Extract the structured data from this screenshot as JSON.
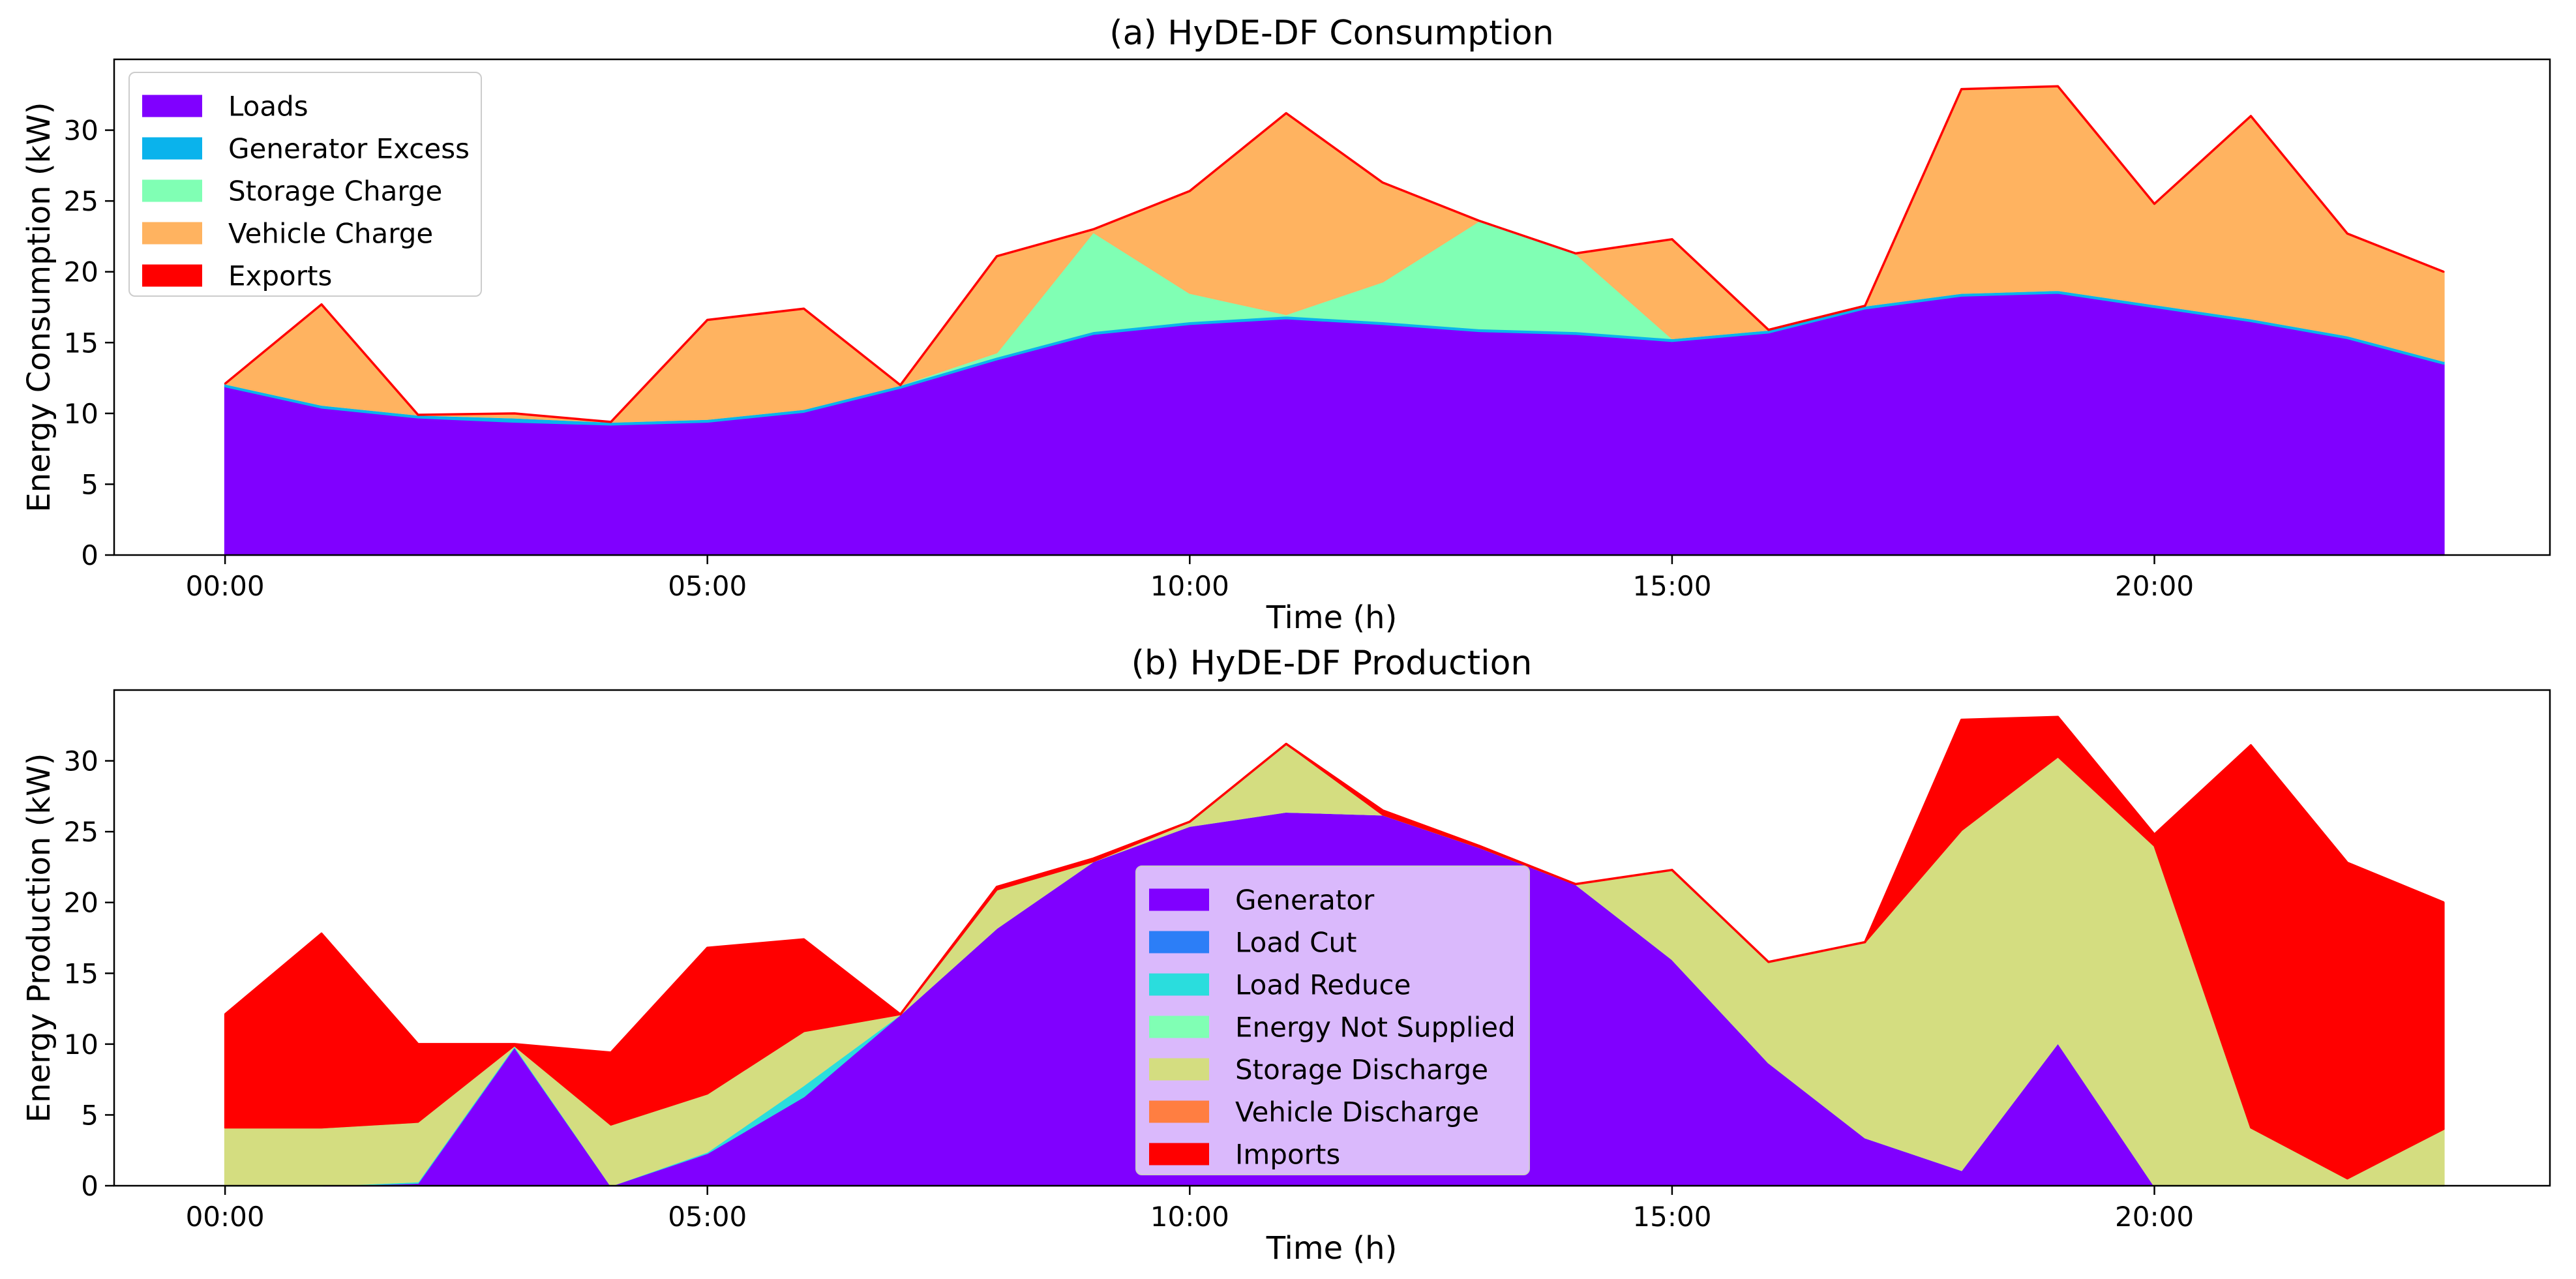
{
  "chart_data": [
    {
      "type": "area",
      "stacked": true,
      "title": "(a) HyDE-DF Consumption",
      "xlabel": "Time (h)",
      "ylabel": "Energy Consumption (kW)",
      "xlim": [
        -1.15,
        24.1
      ],
      "ylim": [
        0,
        35
      ],
      "x": [
        0,
        1,
        2,
        3,
        4,
        5,
        6,
        7,
        8,
        9,
        10,
        11,
        12,
        13,
        14,
        15,
        16,
        17,
        18,
        19,
        20,
        21,
        22,
        23
      ],
      "xticks": [
        0,
        5,
        10,
        15,
        20
      ],
      "xtick_labels": [
        "00:00",
        "05:00",
        "10:00",
        "15:00",
        "20:00"
      ],
      "yticks": [
        0,
        5,
        10,
        15,
        20,
        25,
        30
      ],
      "legend_position": "upper-left",
      "series": [
        {
          "name": "Loads",
          "color": "#8000ff",
          "values": [
            11.9,
            10.4,
            9.7,
            9.4,
            9.2,
            9.4,
            10.1,
            11.8,
            13.8,
            15.6,
            16.3,
            16.7,
            16.3,
            15.8,
            15.6,
            15.1,
            15.7,
            17.4,
            18.3,
            18.5,
            17.5,
            16.5,
            15.3,
            13.5
          ]
        },
        {
          "name": "Generator Excess",
          "color": "#0ab3ec",
          "values": [
            0.2,
            0.2,
            0.2,
            0.3,
            0.2,
            0.2,
            0.2,
            0.2,
            0.2,
            0.2,
            0.2,
            0.2,
            0.2,
            0.2,
            0.2,
            0.2,
            0.2,
            0.2,
            0.2,
            0.2,
            0.2,
            0.2,
            0.2,
            0.2
          ]
        },
        {
          "name": "Storage Charge",
          "color": "#80ffb4",
          "values": [
            0,
            0,
            0,
            0,
            0,
            0,
            0,
            0,
            0.3,
            7.0,
            2.0,
            0.1,
            2.8,
            7.6,
            5.5,
            0,
            0,
            0,
            0,
            0,
            0,
            0,
            0,
            0
          ]
        },
        {
          "name": "Vehicle Charge",
          "color": "#ffb360",
          "values": [
            0,
            7.1,
            0,
            0.3,
            0,
            7.0,
            7.1,
            0,
            6.8,
            0.2,
            7.2,
            14.2,
            7.0,
            0,
            0,
            7.0,
            0,
            0,
            14.4,
            14.4,
            7.1,
            14.3,
            7.2,
            6.3
          ]
        },
        {
          "name": "Exports",
          "color": "#ff0000",
          "values": [
            0,
            0,
            0,
            0,
            0,
            0,
            0,
            0,
            0,
            0,
            0,
            0,
            0,
            0,
            0,
            0,
            0,
            0,
            0,
            0,
            0,
            0,
            0,
            0
          ]
        }
      ]
    },
    {
      "type": "area",
      "stacked": true,
      "title": "(b) HyDE-DF Production",
      "xlabel": "Time (h)",
      "ylabel": "Energy Production (kW)",
      "xlim": [
        -1.15,
        24.1
      ],
      "ylim": [
        0,
        35
      ],
      "x": [
        0,
        1,
        2,
        3,
        4,
        5,
        6,
        7,
        8,
        9,
        10,
        11,
        12,
        13,
        14,
        15,
        16,
        17,
        18,
        19,
        20,
        21,
        22,
        23
      ],
      "xticks": [
        0,
        5,
        10,
        15,
        20
      ],
      "xtick_labels": [
        "00:00",
        "05:00",
        "10:00",
        "15:00",
        "20:00"
      ],
      "yticks": [
        0,
        5,
        10,
        15,
        20,
        25,
        30
      ],
      "legend_position": "center",
      "series": [
        {
          "name": "Generator",
          "color": "#8000ff",
          "values": [
            0,
            0,
            0.2,
            9.8,
            0,
            2.3,
            6.3,
            12.1,
            18.2,
            22.9,
            25.4,
            26.4,
            26.2,
            23.9,
            21.3,
            16.0,
            8.7,
            3.4,
            1.1,
            10.1,
            0,
            0,
            0,
            0
          ]
        },
        {
          "name": "Load Cut",
          "color": "#2c7ef7",
          "values": [
            0,
            0,
            0,
            0,
            0,
            0,
            0,
            0,
            0,
            0,
            0,
            0,
            0,
            0,
            0,
            0,
            0,
            0,
            0,
            0,
            0,
            0,
            0,
            0
          ]
        },
        {
          "name": "Load Reduce",
          "color": "#2adddd",
          "values": [
            0,
            0,
            0.1,
            0.1,
            0,
            0.1,
            0.8,
            0,
            0,
            0,
            0,
            0,
            0,
            0,
            0,
            0,
            0,
            0,
            0,
            0,
            0,
            0,
            0,
            0
          ]
        },
        {
          "name": "Energy Not Supplied",
          "color": "#80ffb4",
          "values": [
            0,
            0,
            0,
            0,
            0,
            0,
            0,
            0,
            0,
            0,
            0,
            0,
            0,
            0,
            0,
            0,
            0,
            0,
            0,
            0,
            0,
            0,
            0,
            0
          ]
        },
        {
          "name": "Storage Discharge",
          "color": "#d4dd80",
          "values": [
            4.1,
            4.1,
            4.2,
            0,
            4.3,
            4.1,
            3.8,
            0,
            2.7,
            0,
            0.3,
            4.8,
            0,
            0,
            0,
            6.3,
            7.1,
            13.8,
            24.0,
            20.2,
            24.0,
            4.1,
            0.5,
            4.0
          ]
        },
        {
          "name": "Vehicle Discharge",
          "color": "#ff7e41",
          "values": [
            0,
            0,
            0,
            0,
            0,
            0,
            0,
            0,
            0,
            0,
            0,
            0,
            0,
            0,
            0,
            0,
            0,
            0,
            0,
            0,
            0,
            0,
            0,
            0
          ]
        },
        {
          "name": "Imports",
          "color": "#ff0000",
          "values": [
            8.0,
            13.7,
            5.5,
            0.1,
            5.1,
            10.3,
            6.5,
            0,
            0.2,
            0.2,
            0,
            0,
            0.3,
            0.1,
            0,
            0,
            0,
            0,
            7.8,
            2.8,
            0.8,
            27.0,
            22.3,
            16.0
          ]
        }
      ]
    }
  ]
}
